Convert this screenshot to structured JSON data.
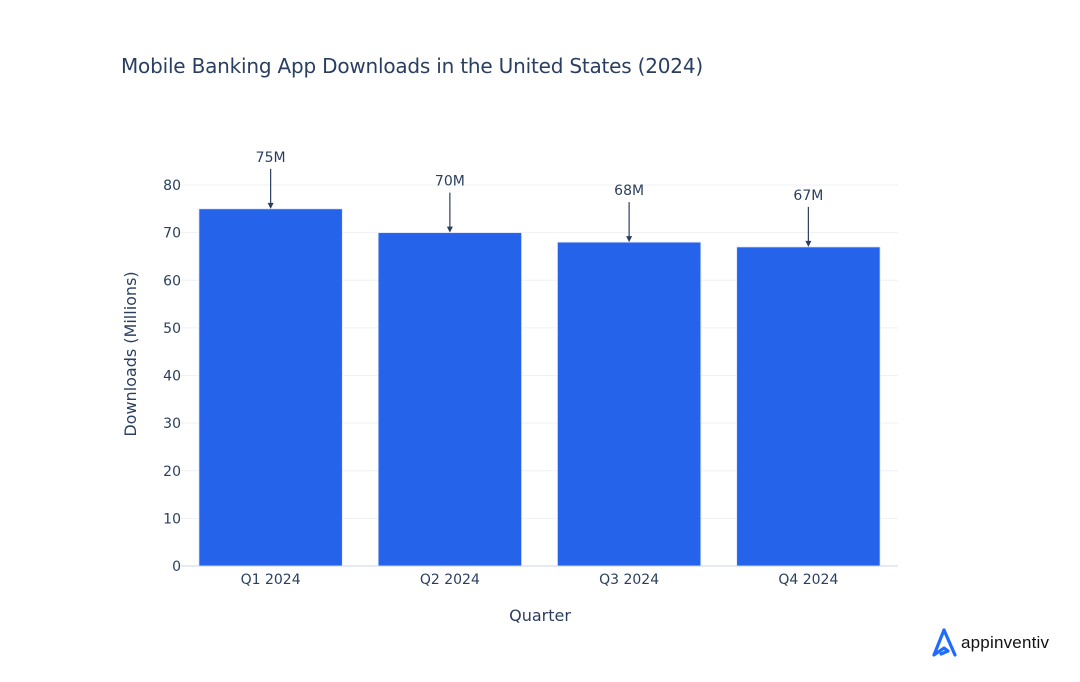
{
  "title": "Mobile Banking App Downloads in the United States (2024)",
  "chart_data": {
    "type": "bar",
    "title": "Mobile Banking App Downloads in the United States (2024)",
    "xlabel": "Quarter",
    "ylabel": "Downloads (Millions)",
    "categories": [
      "Q1 2024",
      "Q2 2024",
      "Q3 2024",
      "Q4 2024"
    ],
    "values": [
      75,
      70,
      68,
      67
    ],
    "annotations": [
      "75M",
      "70M",
      "68M",
      "67M"
    ],
    "ylim": [
      0,
      80
    ],
    "yticks": [
      0,
      10,
      20,
      30,
      40,
      50,
      60,
      70,
      80
    ],
    "grid": true,
    "legend": "none",
    "bar_color": "#2563EB"
  },
  "brand": {
    "name": "appinventiv",
    "color": "#1F6BFF"
  }
}
